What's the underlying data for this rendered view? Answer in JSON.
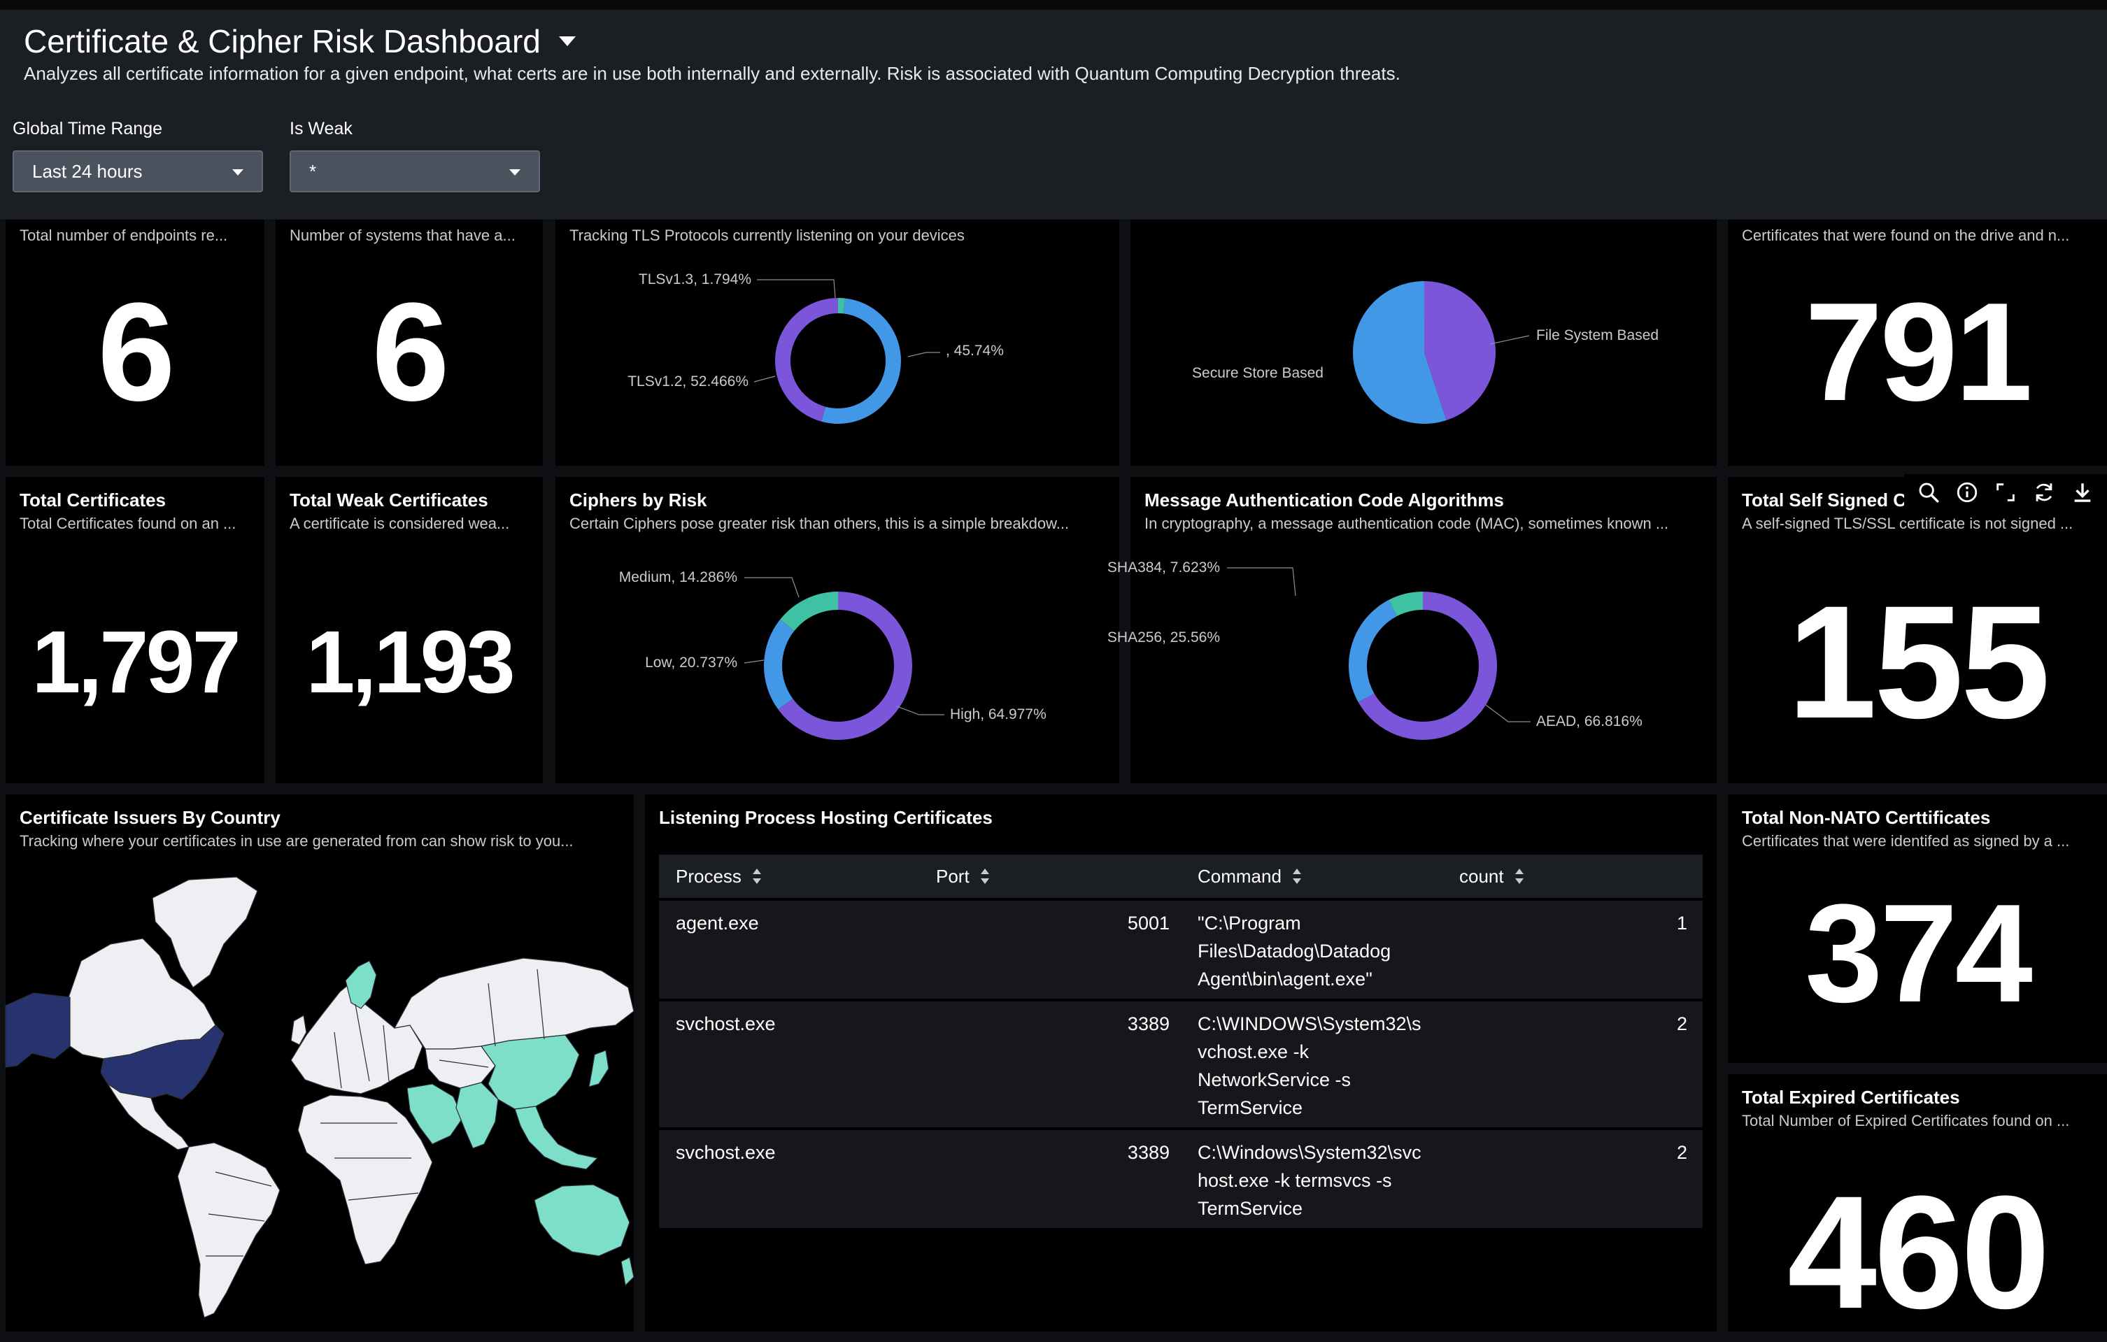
{
  "header": {
    "title": "Certificate & Cipher Risk Dashboard",
    "subtitle": "Analyzes all certificate information for a given endpoint, what certs are in use both internally and externally. Risk is associated with Quantum Computing Decryption threats."
  },
  "filters": {
    "time_range": {
      "label": "Global Time Range",
      "value": "Last 24 hours"
    },
    "is_weak": {
      "label": "Is Weak",
      "value": "*"
    }
  },
  "panels": {
    "endpoints": {
      "desc": "Total number of endpoints re...",
      "value": "6"
    },
    "systems": {
      "desc": "Number of systems that have a...",
      "value": "6"
    },
    "tls": {
      "desc": "Tracking TLS Protocols currently listening on your devices"
    },
    "storage": {},
    "drive_certs": {
      "desc": "Certificates that were found on the drive and n...",
      "value": "791"
    },
    "total_certs": {
      "title": "Total Certificates",
      "desc": "Total Certificates found on an ...",
      "value": "1,797"
    },
    "weak_certs": {
      "title": "Total Weak Certificates",
      "desc": "A certificate is considered wea...",
      "value": "1,193"
    },
    "ciphers": {
      "title": "Ciphers by Risk",
      "desc": "Certain Ciphers pose greater risk than others, this is a simple breakdow..."
    },
    "mac": {
      "title": "Message Authentication Code Algorithms",
      "desc": "In cryptography, a message authentication code (MAC), sometimes known ..."
    },
    "self_signed": {
      "title": "Total Self Signed C",
      "desc": "A self-signed TLS/SSL certificate is not signed ...",
      "value": "155"
    },
    "issuers": {
      "title": "Certificate Issuers By Country",
      "desc": "Tracking where your certificates in use are generated from can show risk to you..."
    },
    "listening": {
      "title": "Listening Process Hosting Certificates"
    },
    "non_nato": {
      "title": "Total Non-NATO Certtificates",
      "desc": "Certificates that were identifed as signed by a ...",
      "value": "374"
    },
    "expired": {
      "title": "Total Expired Certificates",
      "desc": "Total Number of Expired Certificates found on ...",
      "value": "460"
    }
  },
  "table": {
    "columns": [
      "Process",
      "Port",
      "Command",
      "count"
    ],
    "rows": [
      {
        "process": "agent.exe",
        "port": "5001",
        "command": [
          "\"C:\\Program",
          "Files\\Datadog\\Datadog",
          "Agent\\bin\\agent.exe\""
        ],
        "count": "1"
      },
      {
        "process": "svchost.exe",
        "port": "3389",
        "command": [
          "C:\\WINDOWS\\System32\\s",
          "vchost.exe -k",
          "NetworkService -s",
          "TermService"
        ],
        "count": "2"
      },
      {
        "process": "svchost.exe",
        "port": "3389",
        "command": [
          "C:\\Windows\\System32\\svc",
          "host.exe -k termsvcs -s",
          "TermService"
        ],
        "count": "2"
      }
    ]
  },
  "chart_data": [
    {
      "type": "pie",
      "donut": true,
      "categories": [
        "TLSv1.3",
        "TLSv1.2",
        ""
      ],
      "values": [
        1.794,
        52.466,
        45.74
      ],
      "labels": [
        "TLSv1.3, 1.794%",
        "TLSv1.2, 52.466%",
        ", 45.74%"
      ],
      "colors": [
        "#3fc2a3",
        "#4297e6",
        "#7b56db"
      ]
    },
    {
      "type": "pie",
      "donut": false,
      "categories": [
        "File System Based",
        "Secure Store Based"
      ],
      "values": [
        45,
        55
      ],
      "labels": [
        "File System Based",
        "Secure Store Based"
      ],
      "colors": [
        "#7b56db",
        "#4297e6"
      ]
    },
    {
      "type": "pie",
      "donut": true,
      "categories": [
        "High",
        "Low",
        "Medium"
      ],
      "values": [
        64.977,
        20.737,
        14.286
      ],
      "labels": [
        "High, 64.977%",
        "Low, 20.737%",
        "Medium, 14.286%"
      ],
      "colors": [
        "#7b56db",
        "#4297e6",
        "#3fc2a3"
      ]
    },
    {
      "type": "pie",
      "donut": true,
      "categories": [
        "AEAD",
        "SHA256",
        "SHA384"
      ],
      "values": [
        66.816,
        25.56,
        7.623
      ],
      "labels": [
        "AEAD, 66.816%",
        "SHA256, 25.56%",
        "SHA384, 7.623%"
      ],
      "colors": [
        "#7b56db",
        "#4297e6",
        "#3fc2a3"
      ]
    }
  ],
  "map": {
    "colors": {
      "land": "#edeff2",
      "high": "#27336f",
      "medium": "#7ddfc9",
      "border": "#2a2d33"
    }
  }
}
